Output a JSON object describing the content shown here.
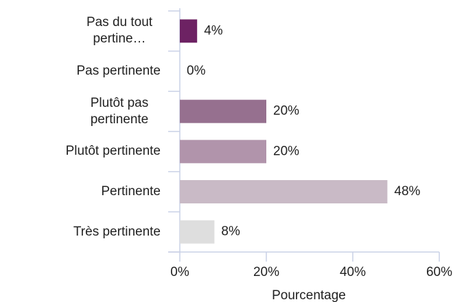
{
  "chart_data": {
    "type": "barh",
    "categories": [
      "Pas du tout pertine…",
      "Pas pertinente",
      "Plutôt pas pertinente",
      "Plutôt pertinente",
      "Pertinente",
      "Très pertinente"
    ],
    "values": [
      4,
      0,
      20,
      20,
      48,
      8
    ],
    "value_labels": [
      "4%",
      "0%",
      "20%",
      "20%",
      "48%",
      "8%"
    ],
    "colors": [
      "#6d2263",
      "#7d3a71",
      "#96708f",
      "#b194ab",
      "#c9bac6",
      "#dedede"
    ],
    "x_label": "Pourcentage",
    "xlim": [
      0,
      60
    ],
    "xticks": [
      {
        "value": 0,
        "label": "0%"
      },
      {
        "value": 20,
        "label": "20%"
      },
      {
        "value": 40,
        "label": "40%"
      },
      {
        "value": 60,
        "label": "60%"
      }
    ]
  }
}
